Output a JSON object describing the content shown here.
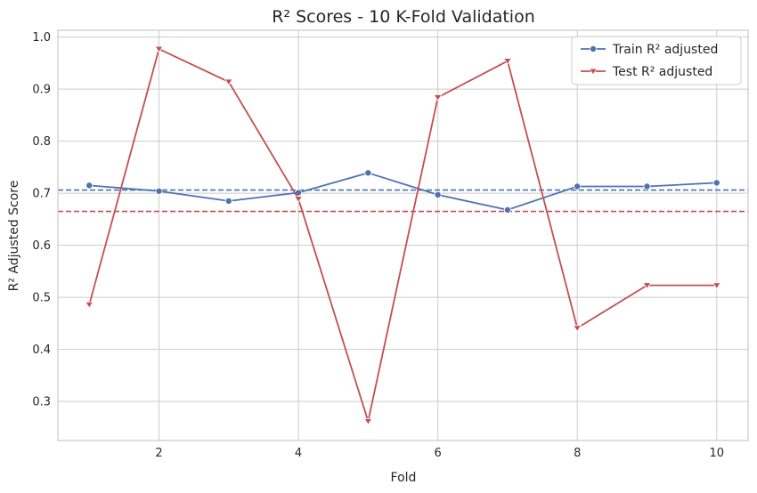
{
  "chart_data": {
    "type": "line",
    "title": "R² Scores - 10 K-Fold Validation",
    "xlabel": "Fold",
    "ylabel": "R² Adjusted Score",
    "x": [
      1,
      2,
      3,
      4,
      5,
      6,
      7,
      8,
      9,
      10
    ],
    "xlim": [
      0.55,
      10.45
    ],
    "ylim": [
      0.225,
      1.013
    ],
    "xticks": [
      2,
      4,
      6,
      8,
      10
    ],
    "xtick_labels": [
      "2",
      "4",
      "6",
      "8",
      "10"
    ],
    "yticks": [
      0.3,
      0.4,
      0.5,
      0.6,
      0.7,
      0.8,
      0.9,
      1.0
    ],
    "ytick_labels": [
      "0.3",
      "0.4",
      "0.5",
      "0.6",
      "0.7",
      "0.8",
      "0.9",
      "1.0"
    ],
    "grid": true,
    "legend_position": "top-right",
    "series": [
      {
        "name": "Train R² adjusted",
        "values": [
          0.715,
          0.704,
          0.685,
          0.701,
          0.739,
          0.697,
          0.668,
          0.713,
          0.713,
          0.72
        ],
        "color": "#4c72b0",
        "marker": "circle",
        "mean": 0.706
      },
      {
        "name": "Test R² adjusted",
        "values": [
          0.486,
          0.977,
          0.914,
          0.689,
          0.262,
          0.884,
          0.954,
          0.441,
          0.523,
          0.523
        ],
        "color": "#c44e52",
        "marker": "triangle-down",
        "mean": 0.665
      }
    ]
  }
}
